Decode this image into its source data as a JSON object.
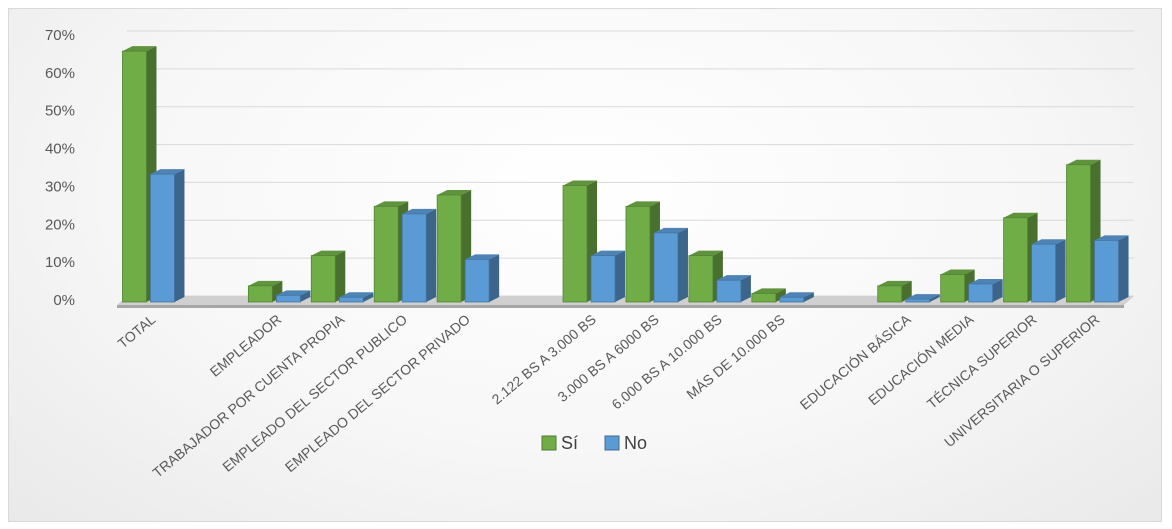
{
  "chart_data": {
    "type": "bar",
    "categories": [
      "TOTAL",
      "",
      "EMPLEADOR",
      "TRABAJADOR POR CUENTA PROPIA",
      "EMPLEADO DEL SECTOR PUBLICO",
      "EMPLEADO DEL SECTOR PRIVADO",
      "",
      "2.122 BS A 3.000 BS",
      "3.000 BS A 6000 BS",
      "6.000 BS A 10.000 BS",
      "MÁS DE 10.000 BS",
      "",
      "EDUCACIÓN BÁSICA",
      "EDUCACIÓN MEDIA",
      "TÉCNICA SUPERIOR",
      "UNIVERSITARIA O SUPERIOR"
    ],
    "series": [
      {
        "name": "Sí",
        "color": "#70ad47",
        "values": [
          66,
          null,
          4,
          12,
          25,
          28,
          null,
          30.5,
          25,
          12,
          2,
          null,
          4,
          7,
          22,
          36
        ]
      },
      {
        "name": "No",
        "color": "#5b9bd5",
        "values": [
          33.5,
          null,
          1.5,
          1,
          23,
          11,
          null,
          12,
          18,
          5.5,
          1,
          null,
          0.5,
          4.5,
          15,
          16
        ]
      }
    ],
    "y_ticks": [
      "0%",
      "10%",
      "20%",
      "30%",
      "40%",
      "50%",
      "60%",
      "70%"
    ],
    "ylim": [
      0,
      70
    ],
    "grid": true,
    "legend_position": "bottom",
    "style": "3d-clustered-column"
  }
}
